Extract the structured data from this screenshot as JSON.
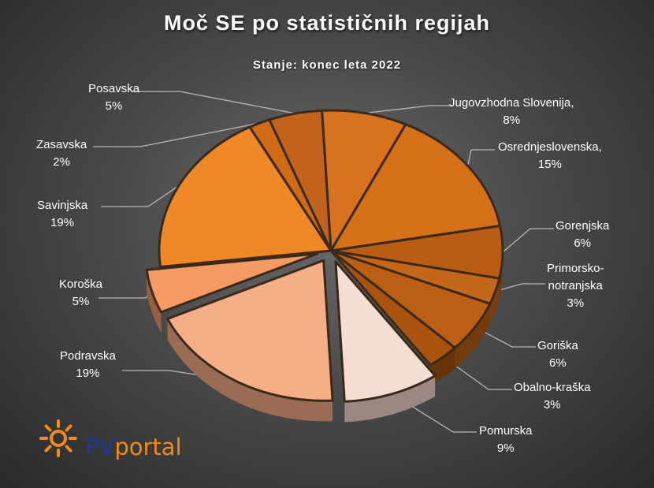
{
  "chart_data": {
    "type": "pie",
    "title": "Moč SE po statističnih regijah",
    "subtitle": "Stanje: konec leta 2022",
    "slices": [
      {
        "name": "Jugovzhodna Slovenija,",
        "pct_label": "8%",
        "value": 8,
        "color": "#d8721e"
      },
      {
        "name": "Osrednjeslovenska,",
        "pct_label": "15%",
        "value": 15,
        "color": "#d57019"
      },
      {
        "name": "Gorenjska",
        "pct_label": "6%",
        "value": 6,
        "color": "#b85d13"
      },
      {
        "name": "Primorsko-notranjska",
        "pct_label": "3%",
        "value": 3,
        "color": "#c4661a"
      },
      {
        "name": "Goriška",
        "pct_label": "6%",
        "value": 6,
        "color": "#bb5f15"
      },
      {
        "name": "Obalno-kraška",
        "pct_label": "3%",
        "value": 3,
        "color": "#a9530f"
      },
      {
        "name": "Pomurska",
        "pct_label": "9%",
        "value": 9,
        "color": "#f6ddd1"
      },
      {
        "name": "Podravska",
        "pct_label": "19%",
        "value": 19,
        "color": "#f6ae86"
      },
      {
        "name": "Koroška",
        "pct_label": "5%",
        "value": 5,
        "color": "#f49a62"
      },
      {
        "name": "Savinjska",
        "pct_label": "19%",
        "value": 19,
        "color": "#f08826"
      },
      {
        "name": "Zasavska",
        "pct_label": "2%",
        "value": 2,
        "color": "#cf6a15"
      },
      {
        "name": "Posavska",
        "pct_label": "5%",
        "value": 5,
        "color": "#c3621a"
      }
    ]
  },
  "labels": {
    "jugovzhodna": {
      "line1": "Jugovzhodna Slovenija,",
      "line2": "8%"
    },
    "osrednjeslovenska": {
      "line1": "Osrednjeslovenska,",
      "line2": "15%"
    },
    "gorenjska": {
      "line1": "Gorenjska",
      "line2": "6%"
    },
    "primorsko": {
      "line1": "Primorsko-",
      "line2": "notranjska",
      "line3": "3%"
    },
    "goriska": {
      "line1": "Goriška",
      "line2": "6%"
    },
    "obalno": {
      "line1": "Obalno-kraška",
      "line2": "3%"
    },
    "pomurska": {
      "line1": "Pomurska",
      "line2": "9%"
    },
    "podravska": {
      "line1": "Podravska",
      "line2": "19%"
    },
    "koroska": {
      "line1": "Koroška",
      "line2": "5%"
    },
    "savinjska": {
      "line1": "Savinjska",
      "line2": "19%"
    },
    "zasavska": {
      "line1": "Zasavska",
      "line2": "2%"
    },
    "posavska": {
      "line1": "Posavska",
      "line2": "5%"
    }
  },
  "logo": {
    "pv": "PV",
    "portal": "portal"
  }
}
